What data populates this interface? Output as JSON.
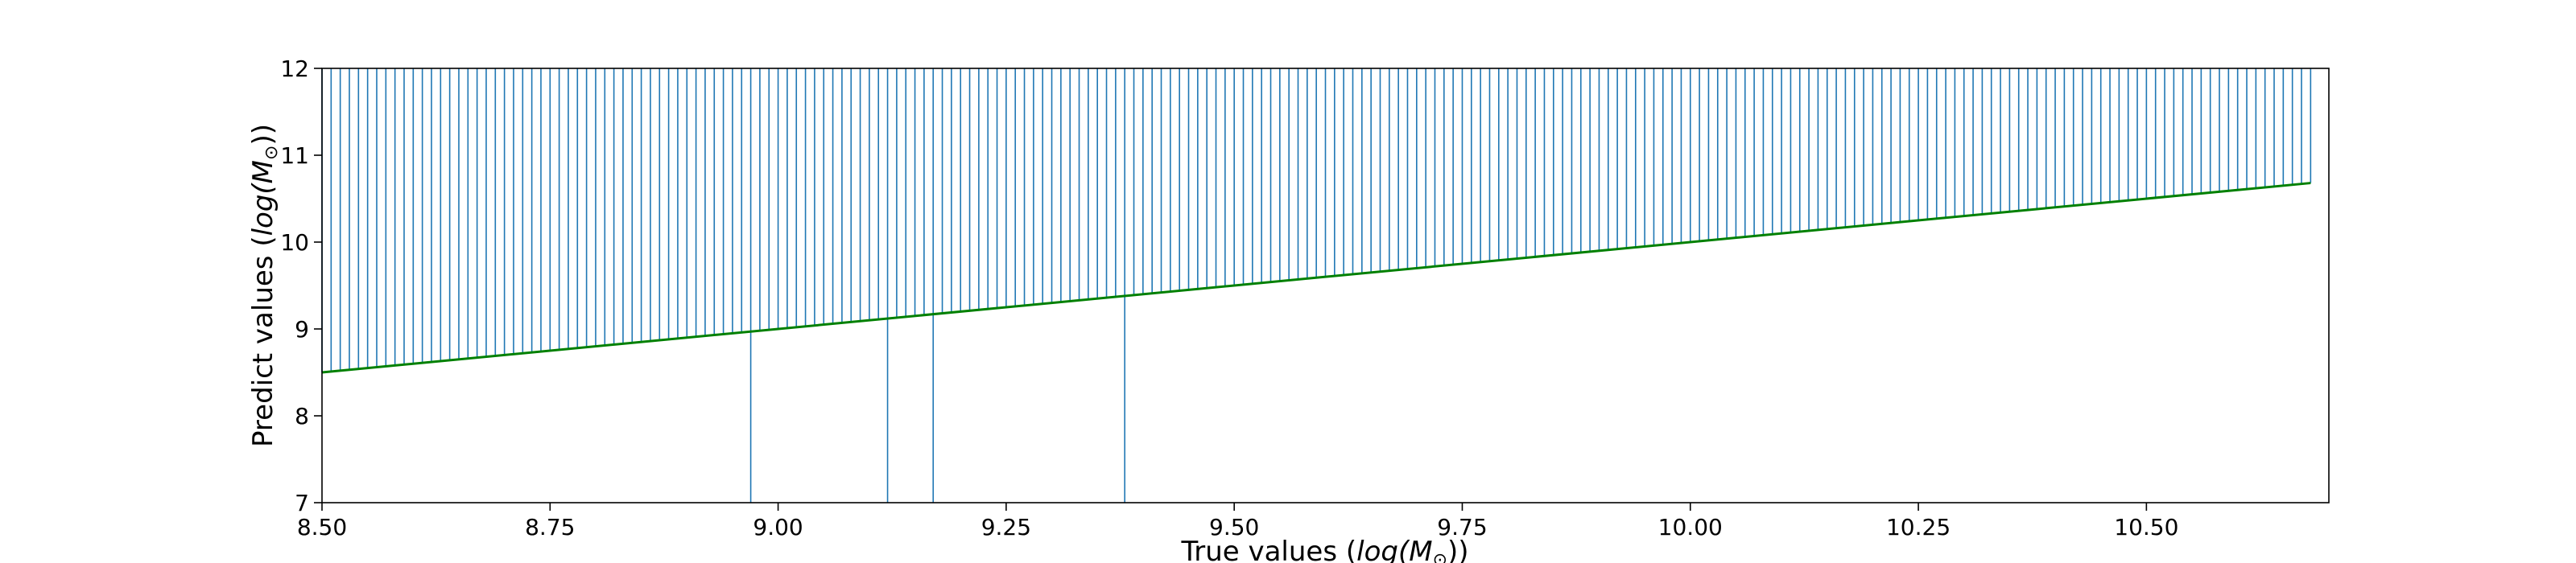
{
  "chart_data": {
    "type": "line",
    "title": "",
    "xlabel": {
      "prefix": "True values (",
      "math_prefix": "log(M",
      "math_sub": "⊙",
      "math_suffix": ")",
      "suffix": ")"
    },
    "ylabel": {
      "prefix": "Predict values (",
      "math_prefix": "log(M",
      "math_sub": "⊙",
      "math_suffix": ")",
      "suffix": ")"
    },
    "xlim": [
      8.5,
      10.7
    ],
    "ylim": [
      7,
      12
    ],
    "xticks": [
      8.5,
      8.75,
      9.0,
      9.25,
      9.5,
      9.75,
      10.0,
      10.25,
      10.5
    ],
    "xtick_labels": [
      "8.50",
      "8.75",
      "9.00",
      "9.25",
      "9.50",
      "9.75",
      "10.00",
      "10.25",
      "10.50"
    ],
    "yticks": [
      7,
      8,
      9,
      10,
      11,
      12
    ],
    "ytick_labels": [
      "7",
      "8",
      "9",
      "10",
      "11",
      "12"
    ],
    "grid": false,
    "series": [
      {
        "style": "vlines",
        "color": "#1f77b4",
        "x_start": 8.5,
        "x_end": 10.68,
        "spacing": 0.01,
        "y_top": 12,
        "outliers": [
          {
            "x": 8.97,
            "y_bottom": 7
          },
          {
            "x": 9.12,
            "y_bottom": 7
          },
          {
            "x": 9.17,
            "y_bottom": 7
          },
          {
            "x": 9.38,
            "y_bottom": 7
          }
        ]
      },
      {
        "style": "line",
        "color": "#008000",
        "x": [
          8.5,
          10.68
        ],
        "y": [
          8.5,
          10.68
        ]
      }
    ]
  }
}
